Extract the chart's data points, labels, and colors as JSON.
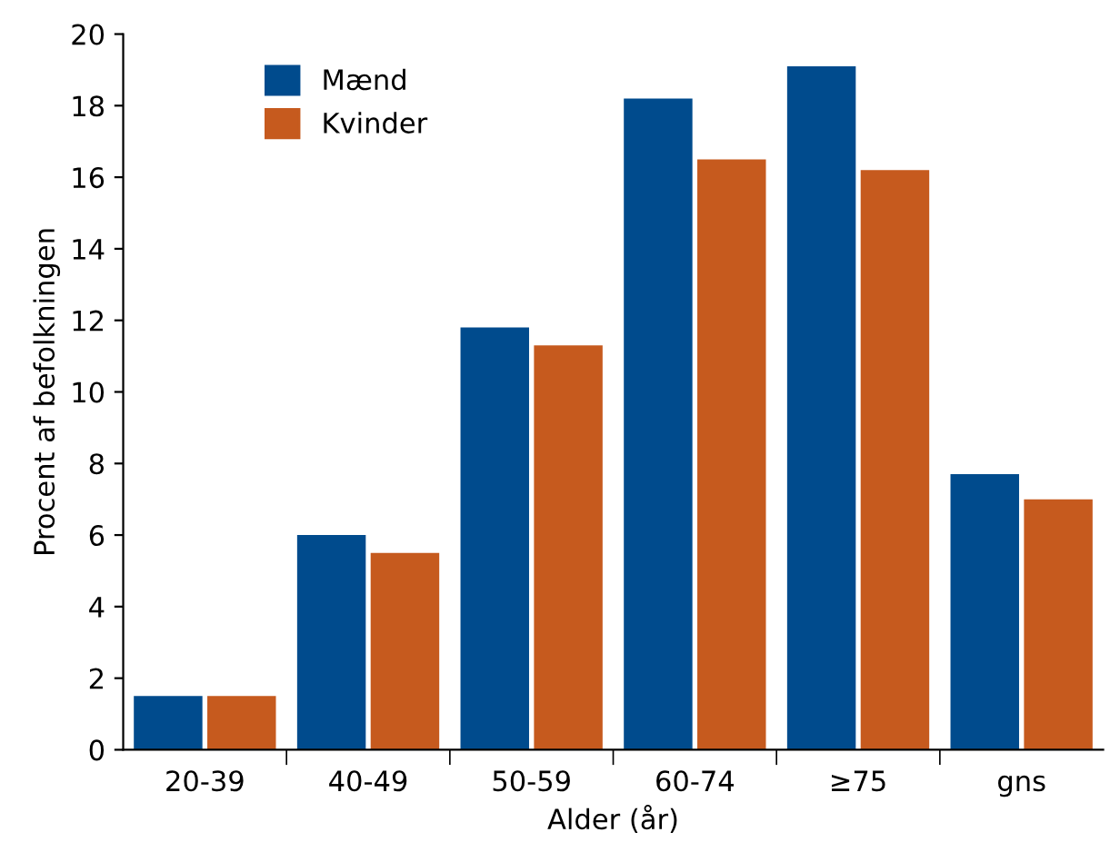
{
  "chart_data": {
    "type": "bar",
    "xlabel": "Alder (år)",
    "ylabel": "Procent af befolkningen",
    "categories": [
      "20-39",
      "40-49",
      "50-59",
      "60-74",
      "≥75",
      "gns"
    ],
    "series": [
      {
        "name": "Mænd",
        "color": "#004b8d",
        "values": [
          1.5,
          6.0,
          11.8,
          18.2,
          19.1,
          7.7
        ]
      },
      {
        "name": "Kvinder",
        "color": "#c65a1e",
        "values": [
          1.5,
          5.5,
          11.3,
          16.5,
          16.2,
          7.0
        ]
      }
    ],
    "ylim": [
      0,
      20
    ],
    "yticks": [
      0,
      2,
      4,
      6,
      8,
      10,
      12,
      14,
      16,
      18,
      20
    ],
    "grid": false,
    "legend": "top left"
  }
}
